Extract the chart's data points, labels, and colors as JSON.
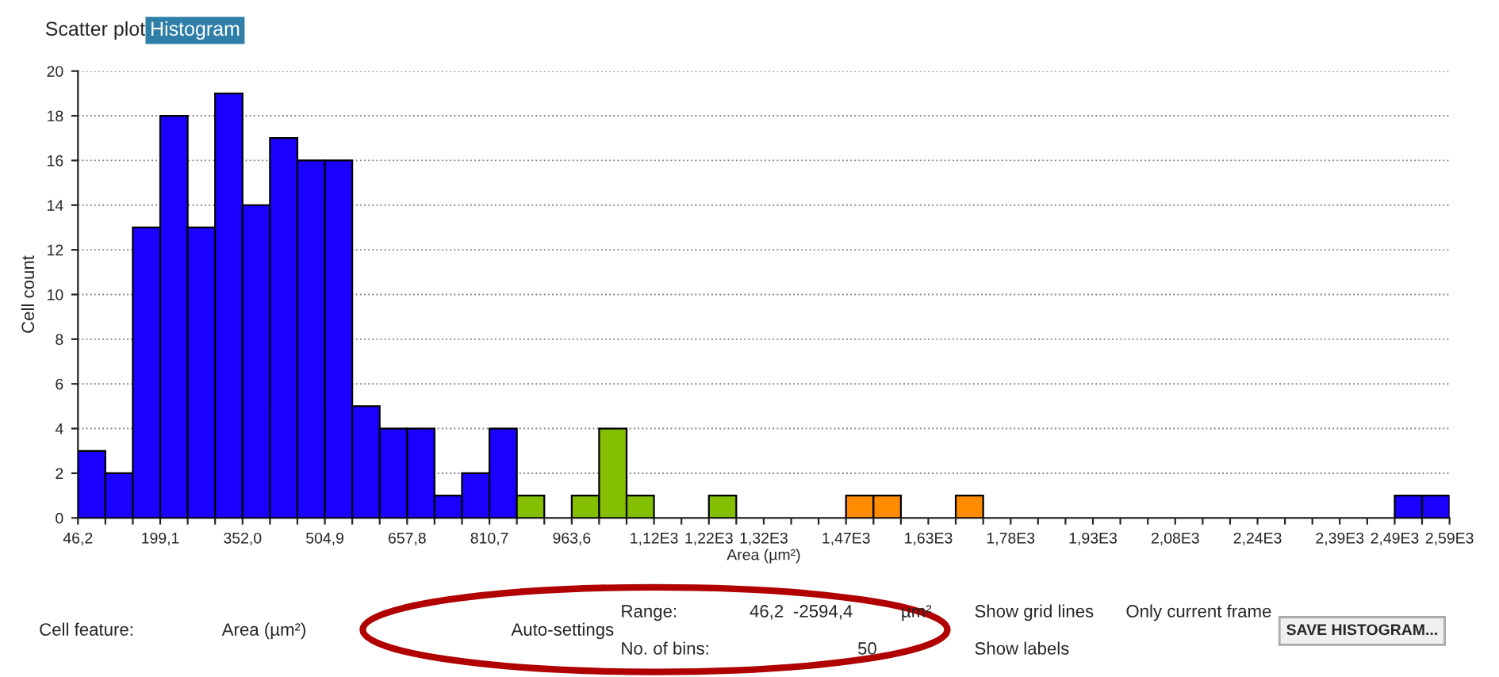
{
  "chart_data": {
    "type": "histogram",
    "xlabel": "Area (µm²)",
    "ylabel": "Cell count",
    "bins": [
      46.2,
      97.2,
      148.1,
      199.1,
      250.1,
      301.0,
      352.0,
      402.9,
      453.9,
      504.9,
      555.8,
      606.8,
      657.8,
      708.7,
      759.7,
      810.7,
      861.6,
      912.6,
      963.6,
      1014.5,
      1065.5,
      1116.4,
      1167.4,
      1218.4,
      1269.3,
      1320.3,
      1371.3,
      1422.2,
      1473.2,
      1524.2,
      1575.1,
      1626.1,
      1677.0,
      1728.0,
      1779.0,
      1829.9,
      1880.9,
      1931.9,
      1982.8,
      2033.8,
      2084.8,
      2135.7,
      2186.7,
      2237.7,
      2288.6,
      2339.6,
      2390.5,
      2441.5,
      2492.5,
      2543.4,
      2594.4
    ],
    "values": [
      3,
      2,
      13,
      18,
      13,
      19,
      14,
      17,
      16,
      16,
      5,
      4,
      4,
      1,
      2,
      4,
      1,
      0,
      1,
      4,
      1,
      0,
      0,
      1,
      0,
      0,
      0,
      0,
      1,
      1,
      0,
      0,
      1,
      0,
      0,
      0,
      0,
      0,
      0,
      0,
      0,
      0,
      0,
      0,
      0,
      0,
      0,
      0,
      1,
      1
    ],
    "colors": [
      "#1a00ff",
      "#1a00ff",
      "#1a00ff",
      "#1a00ff",
      "#1a00ff",
      "#1a00ff",
      "#1a00ff",
      "#1a00ff",
      "#1a00ff",
      "#1a00ff",
      "#1a00ff",
      "#1a00ff",
      "#1a00ff",
      "#1a00ff",
      "#1a00ff",
      "#1a00ff",
      "#84bf00",
      null,
      "#84bf00",
      "#84bf00",
      "#84bf00",
      null,
      null,
      "#84bf00",
      null,
      null,
      null,
      null,
      "#ff8c00",
      "#ff8c00",
      null,
      null,
      "#ff8c00",
      null,
      null,
      null,
      null,
      null,
      null,
      null,
      null,
      null,
      null,
      null,
      null,
      null,
      null,
      null,
      "#1a00ff",
      "#1a00ff"
    ],
    "xlim": [
      46.2,
      2594.4
    ],
    "ylim": [
      0,
      20
    ],
    "yticks": [
      0,
      2,
      4,
      6,
      8,
      10,
      12,
      14,
      16,
      18,
      20
    ],
    "xticks": [
      {
        "value": 46.2,
        "label": "46,2"
      },
      {
        "value": 97.2,
        "label": null
      },
      {
        "value": 148.1,
        "label": null
      },
      {
        "value": 199.1,
        "label": "199,1"
      },
      {
        "value": 250.1,
        "label": null
      },
      {
        "value": 301.0,
        "label": null
      },
      {
        "value": 352.0,
        "label": "352,0"
      },
      {
        "value": 402.9,
        "label": null
      },
      {
        "value": 453.9,
        "label": null
      },
      {
        "value": 504.9,
        "label": "504,9"
      },
      {
        "value": 555.8,
        "label": null
      },
      {
        "value": 606.8,
        "label": null
      },
      {
        "value": 657.8,
        "label": "657,8"
      },
      {
        "value": 708.7,
        "label": null
      },
      {
        "value": 759.7,
        "label": null
      },
      {
        "value": 810.7,
        "label": "810,7"
      },
      {
        "value": 861.6,
        "label": null
      },
      {
        "value": 912.6,
        "label": null
      },
      {
        "value": 963.6,
        "label": "963,6"
      },
      {
        "value": 1014.5,
        "label": null
      },
      {
        "value": 1065.5,
        "label": null
      },
      {
        "value": 1116.4,
        "label": "1,12E3"
      },
      {
        "value": 1167.4,
        "label": null
      },
      {
        "value": 1218.4,
        "label": "1,22E3"
      },
      {
        "value": 1269.3,
        "label": null
      },
      {
        "value": 1320.3,
        "label": "1,32E3"
      },
      {
        "value": 1371.3,
        "label": null
      },
      {
        "value": 1422.2,
        "label": null
      },
      {
        "value": 1473.2,
        "label": "1,47E3"
      },
      {
        "value": 1524.2,
        "label": null
      },
      {
        "value": 1575.1,
        "label": null
      },
      {
        "value": 1626.1,
        "label": "1,63E3"
      },
      {
        "value": 1677.0,
        "label": null
      },
      {
        "value": 1728.0,
        "label": null
      },
      {
        "value": 1779.0,
        "label": "1,78E3"
      },
      {
        "value": 1829.9,
        "label": null
      },
      {
        "value": 1880.9,
        "label": null
      },
      {
        "value": 1931.9,
        "label": "1,93E3"
      },
      {
        "value": 1982.8,
        "label": null
      },
      {
        "value": 2033.8,
        "label": null
      },
      {
        "value": 2084.8,
        "label": "2,08E3"
      },
      {
        "value": 2135.7,
        "label": null
      },
      {
        "value": 2186.7,
        "label": null
      },
      {
        "value": 2237.7,
        "label": "2,24E3"
      },
      {
        "value": 2288.6,
        "label": null
      },
      {
        "value": 2339.6,
        "label": null
      },
      {
        "value": 2390.5,
        "label": "2,39E3"
      },
      {
        "value": 2441.5,
        "label": null
      },
      {
        "value": 2492.5,
        "label": "2,49E3"
      },
      {
        "value": 2543.4,
        "label": null
      },
      {
        "value": 2594.4,
        "label": "2,59E3"
      }
    ],
    "grid": "y",
    "annotations": [
      "Scatter plot",
      "Histogram",
      "Cell feature:",
      "Area (µm²)",
      "Auto-settings",
      "Range:",
      "46,2",
      "-",
      "2594,4",
      "µm²",
      "No. of bins:",
      "50",
      "Show grid lines",
      "Only current frame",
      "Show labels",
      "SAVE HISTOGRAM..."
    ]
  }
}
